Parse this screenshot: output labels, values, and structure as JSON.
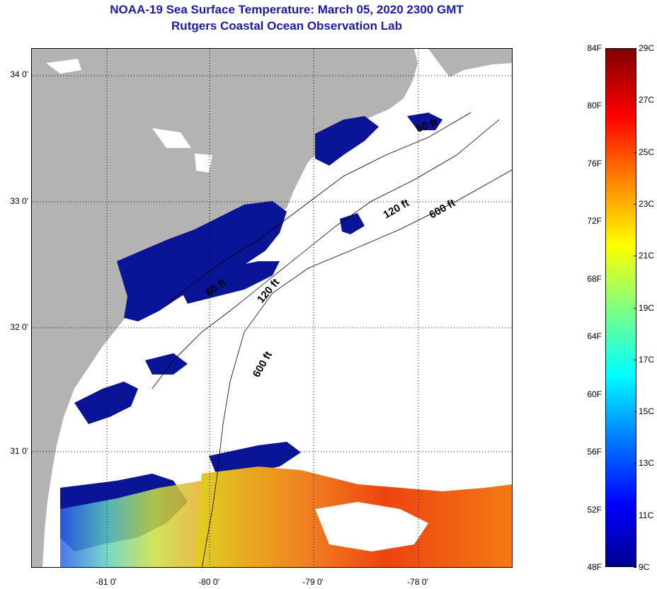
{
  "title": {
    "line1": "NOAA-19 Sea Surface Temperature:  March 05, 2020 2300 GMT",
    "line2": "Rutgers Coastal Ocean Observation Lab"
  },
  "map": {
    "lat_labels": [
      "34 0'",
      "33 0'",
      "32 0'",
      "31 0'"
    ],
    "lon_labels": [
      "-81 0'",
      "-80 0'",
      "-79 0'",
      "-78 0'"
    ],
    "contour_labels": [
      "60 ft",
      "120 ft",
      "600 ft",
      "120 ft",
      "600 ft",
      "60 ft"
    ],
    "colors": {
      "land": "#b3b3b3",
      "cold_water": "#0a1496",
      "warm_water": "#f36a0a",
      "cloud": "#ffffff"
    }
  },
  "colorbar": {
    "fahrenheit": [
      "84F",
      "80F",
      "76F",
      "72F",
      "68F",
      "64F",
      "60F",
      "56F",
      "52F",
      "48F"
    ],
    "celsius": [
      "29C",
      "27C",
      "25C",
      "23C",
      "21C",
      "19C",
      "17C",
      "15C",
      "13C",
      "11C",
      "9C"
    ]
  }
}
